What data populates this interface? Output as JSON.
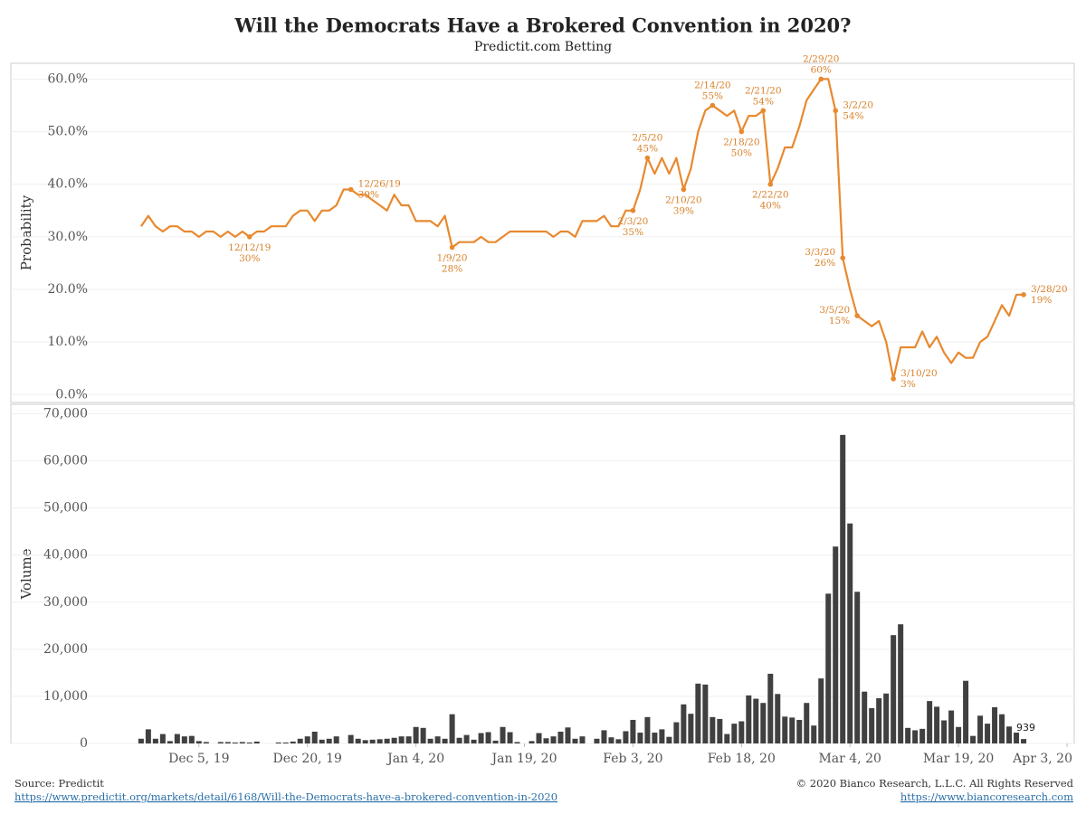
{
  "chart_data": [
    {
      "type": "line",
      "title": "Will the Democrats Have a Brokered Convention in 2020?",
      "subtitle": "Predictit.com Betting",
      "ylabel": "Probability",
      "color": "#e8892f",
      "grid": true,
      "xlim": [
        "2019-11-09",
        "2020-04-04"
      ],
      "x": [
        "2019-11-27",
        "2019-11-28",
        "2019-11-29",
        "2019-11-30",
        "2019-12-01",
        "2019-12-02",
        "2019-12-03",
        "2019-12-04",
        "2019-12-05",
        "2019-12-06",
        "2019-12-07",
        "2019-12-08",
        "2019-12-09",
        "2019-12-10",
        "2019-12-11",
        "2019-12-12",
        "2019-12-13",
        "2019-12-14",
        "2019-12-15",
        "2019-12-16",
        "2019-12-17",
        "2019-12-18",
        "2019-12-19",
        "2019-12-20",
        "2019-12-21",
        "2019-12-22",
        "2019-12-23",
        "2019-12-24",
        "2019-12-25",
        "2019-12-26",
        "2019-12-27",
        "2019-12-28",
        "2019-12-29",
        "2019-12-30",
        "2019-12-31",
        "2020-01-01",
        "2020-01-02",
        "2020-01-03",
        "2020-01-04",
        "2020-01-05",
        "2020-01-06",
        "2020-01-07",
        "2020-01-08",
        "2020-01-09",
        "2020-01-10",
        "2020-01-11",
        "2020-01-12",
        "2020-01-13",
        "2020-01-14",
        "2020-01-15",
        "2020-01-16",
        "2020-01-17",
        "2020-01-18",
        "2020-01-19",
        "2020-01-20",
        "2020-01-21",
        "2020-01-22",
        "2020-01-23",
        "2020-01-24",
        "2020-01-25",
        "2020-01-26",
        "2020-01-27",
        "2020-01-28",
        "2020-01-29",
        "2020-01-30",
        "2020-01-31",
        "2020-02-01",
        "2020-02-02",
        "2020-02-03",
        "2020-02-04",
        "2020-02-05",
        "2020-02-06",
        "2020-02-07",
        "2020-02-08",
        "2020-02-09",
        "2020-02-10",
        "2020-02-11",
        "2020-02-12",
        "2020-02-13",
        "2020-02-14",
        "2020-02-15",
        "2020-02-16",
        "2020-02-17",
        "2020-02-18",
        "2020-02-19",
        "2020-02-20",
        "2020-02-21",
        "2020-02-22",
        "2020-02-23",
        "2020-02-24",
        "2020-02-25",
        "2020-02-26",
        "2020-02-27",
        "2020-02-28",
        "2020-02-29",
        "2020-03-01",
        "2020-03-02",
        "2020-03-03",
        "2020-03-04",
        "2020-03-05",
        "2020-03-06",
        "2020-03-07",
        "2020-03-08",
        "2020-03-09",
        "2020-03-10",
        "2020-03-11",
        "2020-03-12",
        "2020-03-13",
        "2020-03-14",
        "2020-03-15",
        "2020-03-16",
        "2020-03-17",
        "2020-03-18",
        "2020-03-19",
        "2020-03-20",
        "2020-03-21",
        "2020-03-22",
        "2020-03-23",
        "2020-03-24",
        "2020-03-25",
        "2020-03-26",
        "2020-03-27",
        "2020-03-28"
      ],
      "values": [
        32,
        34,
        32,
        31,
        32,
        32,
        31,
        31,
        30,
        31,
        31,
        30,
        31,
        30,
        31,
        30,
        31,
        31,
        32,
        32,
        32,
        34,
        35,
        35,
        33,
        35,
        35,
        36,
        39,
        39,
        38,
        38,
        37,
        36,
        35,
        38,
        36,
        36,
        33,
        33,
        33,
        32,
        34,
        28,
        29,
        29,
        29,
        30,
        29,
        29,
        30,
        31,
        31,
        31,
        31,
        31,
        31,
        30,
        31,
        31,
        30,
        33,
        33,
        33,
        34,
        32,
        32,
        35,
        35,
        39,
        45,
        42,
        45,
        42,
        45,
        39,
        43,
        50,
        54,
        55,
        54,
        53,
        54,
        50,
        53,
        53,
        54,
        40,
        43,
        47,
        47,
        51,
        56,
        58,
        60,
        60,
        54,
        26,
        20,
        15,
        14,
        13,
        14,
        10,
        3,
        9,
        9,
        9,
        12,
        9,
        11,
        8,
        6,
        8,
        7,
        7,
        10,
        11,
        14,
        17,
        15,
        19,
        19
      ],
      "date_labels": [
        null,
        null,
        null,
        null,
        null,
        null,
        null,
        null,
        null,
        null,
        null,
        null,
        null,
        null,
        null,
        "12/12/19",
        null,
        null,
        null,
        null,
        null,
        null,
        null,
        null,
        null,
        null,
        null,
        null,
        null,
        "12/26/19",
        null,
        null,
        null,
        null,
        null,
        null,
        null,
        null,
        null,
        null,
        null,
        null,
        null,
        "1/9/20",
        null,
        null,
        null,
        null,
        null,
        null,
        null,
        null,
        null,
        null,
        null,
        null,
        null,
        null,
        null,
        null,
        null,
        null,
        null,
        null,
        null,
        null,
        null,
        null,
        "2/3/20",
        null,
        "2/5/20",
        null,
        null,
        null,
        null,
        "2/10/20",
        null,
        null,
        null,
        "2/14/20",
        null,
        null,
        null,
        "2/18/20",
        null,
        null,
        "2/21/20",
        "2/22/20",
        null,
        null,
        null,
        null,
        null,
        null,
        "2/29/20",
        null,
        "3/2/20",
        "3/3/20",
        null,
        "3/5/20",
        null,
        null,
        null,
        null,
        "3/10/20",
        null,
        null,
        null,
        null,
        null,
        null,
        null,
        null,
        null,
        null,
        null,
        null,
        null,
        null,
        null,
        null,
        null,
        "3/28/20"
      ],
      "value_labels": [
        null,
        null,
        null,
        null,
        null,
        null,
        null,
        null,
        null,
        null,
        null,
        null,
        null,
        null,
        null,
        "30%",
        null,
        null,
        null,
        null,
        null,
        null,
        null,
        null,
        null,
        null,
        null,
        null,
        null,
        "39%",
        null,
        null,
        null,
        null,
        null,
        null,
        null,
        null,
        null,
        null,
        null,
        null,
        null,
        "28%",
        null,
        null,
        null,
        null,
        null,
        null,
        null,
        null,
        null,
        null,
        null,
        null,
        null,
        null,
        null,
        null,
        null,
        null,
        null,
        null,
        null,
        null,
        null,
        null,
        "35%",
        null,
        "45%",
        null,
        null,
        null,
        null,
        "39%",
        null,
        null,
        null,
        "55%",
        null,
        null,
        null,
        "50%",
        null,
        null,
        "54%",
        "40%",
        null,
        null,
        null,
        null,
        null,
        null,
        "60%",
        null,
        "54%",
        "26%",
        null,
        "15%",
        null,
        null,
        null,
        null,
        "3%",
        null,
        null,
        null,
        null,
        null,
        null,
        null,
        null,
        null,
        null,
        null,
        null,
        null,
        null,
        null,
        null,
        null,
        "19%"
      ],
      "ylim": [
        -1.5,
        63
      ],
      "yticks": [
        {
          "value": 0,
          "label": "0.0%"
        },
        {
          "value": 10,
          "label": "10.0%"
        },
        {
          "value": 20,
          "label": "20.0%"
        },
        {
          "value": 30,
          "label": "30.0%"
        },
        {
          "value": 40,
          "label": "40.0%"
        },
        {
          "value": 50,
          "label": "50.0%"
        },
        {
          "value": 60,
          "label": "60.0%"
        }
      ]
    },
    {
      "type": "bar",
      "ylabel": "Volume",
      "color": "#404040",
      "grid": true,
      "label_last": true,
      "xlim": [
        "2019-11-09",
        "2020-04-04"
      ],
      "x": [
        "2019-11-27",
        "2019-11-28",
        "2019-11-29",
        "2019-11-30",
        "2019-12-01",
        "2019-12-02",
        "2019-12-03",
        "2019-12-04",
        "2019-12-05",
        "2019-12-06",
        "2019-12-07",
        "2019-12-08",
        "2019-12-09",
        "2019-12-10",
        "2019-12-11",
        "2019-12-12",
        "2019-12-13",
        "2019-12-14",
        "2019-12-15",
        "2019-12-16",
        "2019-12-17",
        "2019-12-18",
        "2019-12-19",
        "2019-12-20",
        "2019-12-21",
        "2019-12-22",
        "2019-12-23",
        "2019-12-24",
        "2019-12-25",
        "2019-12-26",
        "2019-12-27",
        "2019-12-28",
        "2019-12-29",
        "2019-12-30",
        "2019-12-31",
        "2020-01-01",
        "2020-01-02",
        "2020-01-03",
        "2020-01-04",
        "2020-01-05",
        "2020-01-06",
        "2020-01-07",
        "2020-01-08",
        "2020-01-09",
        "2020-01-10",
        "2020-01-11",
        "2020-01-12",
        "2020-01-13",
        "2020-01-14",
        "2020-01-15",
        "2020-01-16",
        "2020-01-17",
        "2020-01-18",
        "2020-01-19",
        "2020-01-20",
        "2020-01-21",
        "2020-01-22",
        "2020-01-23",
        "2020-01-24",
        "2020-01-25",
        "2020-01-26",
        "2020-01-27",
        "2020-01-28",
        "2020-01-29",
        "2020-01-30",
        "2020-01-31",
        "2020-02-01",
        "2020-02-02",
        "2020-02-03",
        "2020-02-04",
        "2020-02-05",
        "2020-02-06",
        "2020-02-07",
        "2020-02-08",
        "2020-02-09",
        "2020-02-10",
        "2020-02-11",
        "2020-02-12",
        "2020-02-13",
        "2020-02-14",
        "2020-02-15",
        "2020-02-16",
        "2020-02-17",
        "2020-02-18",
        "2020-02-19",
        "2020-02-20",
        "2020-02-21",
        "2020-02-22",
        "2020-02-23",
        "2020-02-24",
        "2020-02-25",
        "2020-02-26",
        "2020-02-27",
        "2020-02-28",
        "2020-02-29",
        "2020-03-01",
        "2020-03-02",
        "2020-03-03",
        "2020-03-04",
        "2020-03-05",
        "2020-03-06",
        "2020-03-07",
        "2020-03-08",
        "2020-03-09",
        "2020-03-10",
        "2020-03-11",
        "2020-03-12",
        "2020-03-13",
        "2020-03-14",
        "2020-03-15",
        "2020-03-16",
        "2020-03-17",
        "2020-03-18",
        "2020-03-19",
        "2020-03-20",
        "2020-03-21",
        "2020-03-22",
        "2020-03-23",
        "2020-03-24",
        "2020-03-25",
        "2020-03-26",
        "2020-03-27",
        "2020-03-28"
      ],
      "values": [
        1000,
        3000,
        1000,
        2000,
        500,
        2000,
        1500,
        1600,
        500,
        300,
        0,
        300,
        300,
        200,
        300,
        200,
        400,
        0,
        0,
        200,
        200,
        400,
        1000,
        1500,
        2500,
        800,
        1000,
        1500,
        0,
        1800,
        1000,
        700,
        800,
        900,
        1000,
        1200,
        1500,
        1500,
        3500,
        3300,
        1000,
        1500,
        1000,
        6200,
        1200,
        1800,
        800,
        2200,
        2400,
        600,
        3500,
        2400,
        300,
        0,
        500,
        2200,
        1100,
        1500,
        2500,
        3400,
        1000,
        1500,
        0,
        1000,
        2800,
        1300,
        900,
        2600,
        5000,
        2300,
        5600,
        2300,
        3000,
        1400,
        4500,
        8300,
        6300,
        12700,
        12500,
        5600,
        5200,
        2000,
        4200,
        4700,
        10200,
        9500,
        8600,
        14800,
        10500,
        5700,
        5500,
        5000,
        8600,
        3800,
        13800,
        31800,
        41800,
        65500,
        46700,
        32200,
        11000,
        7500,
        9600,
        10600,
        23000,
        25300,
        3300,
        2800,
        3100,
        9000,
        7800,
        4900,
        7000,
        3500,
        13300,
        1600,
        5900,
        4200,
        7700,
        6200,
        3600,
        2300,
        939
      ],
      "ylim": [
        0,
        72000
      ],
      "yticks": [
        0,
        {
          "value": 10000,
          "label": "10,000"
        },
        {
          "value": 20000,
          "label": "20,000"
        },
        {
          "value": 30000,
          "label": "30,000"
        },
        {
          "value": 40000,
          "label": "40,000"
        },
        {
          "value": 50000,
          "label": "50,000"
        },
        {
          "value": 60000,
          "label": "60,000"
        },
        {
          "value": 70000,
          "label": "70,000"
        }
      ],
      "xticks": [
        {
          "value": "2019-12-05",
          "label": "Dec 5, 19"
        },
        {
          "value": "2019-12-20",
          "label": "Dec 20, 19"
        },
        {
          "value": "2020-01-04",
          "label": "Jan 4, 20"
        },
        {
          "value": "2020-01-19",
          "label": "Jan 19, 20"
        },
        {
          "value": "2020-02-03",
          "label": "Feb 3, 20"
        },
        {
          "value": "2020-02-18",
          "label": "Feb 18, 20"
        },
        {
          "value": "2020-03-04",
          "label": "Mar 4, 20"
        },
        {
          "value": "2020-03-19",
          "label": "Mar 19, 20"
        },
        {
          "value": "2020-04-03",
          "label": "Apr 3, 20"
        }
      ]
    }
  ],
  "footer": {
    "source": "Source: Predictit",
    "source_url": "https://www.predictit.org/markets/detail/6168/Will-the-Democrats-have-a-brokered-convention-in-2020",
    "copyright": "© 2020 Bianco Research, L.L.C. All Rights Reserved",
    "site_url": "https://www.biancoresearch.com"
  }
}
